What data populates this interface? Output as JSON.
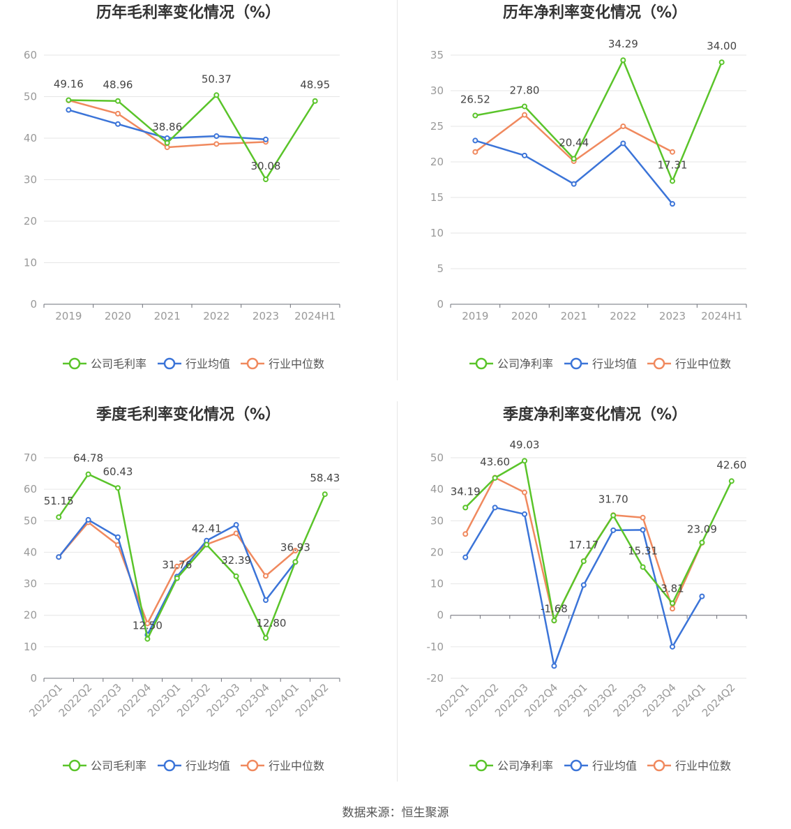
{
  "source": "数据来源：恒生聚源",
  "colors": {
    "company": "#5ac42a",
    "avg": "#3b74d8",
    "median": "#f0895e"
  },
  "chart_data": [
    {
      "type": "line",
      "title": "历年毛利率变化情况（%）",
      "categories": [
        "2019",
        "2020",
        "2021",
        "2022",
        "2023",
        "2024H1"
      ],
      "ylim": [
        0,
        60
      ],
      "yticks": [
        0,
        10,
        20,
        30,
        40,
        50,
        60
      ],
      "rotate_labels": false,
      "series": [
        {
          "name": "公司毛利率",
          "key": "company",
          "values": [
            49.16,
            48.96,
            38.86,
            50.37,
            30.08,
            48.95
          ]
        },
        {
          "name": "行业均值",
          "key": "avg",
          "values": [
            46.8,
            43.4,
            40.0,
            40.5,
            39.7,
            null
          ]
        },
        {
          "name": "行业中位数",
          "key": "median",
          "values": [
            49.1,
            45.9,
            37.8,
            38.6,
            39.1,
            null
          ]
        }
      ],
      "data_labels": [
        "49.16",
        "48.96",
        "38.86",
        "50.37",
        "30.08",
        "48.95"
      ],
      "legend_position": "bottom",
      "grid": true
    },
    {
      "type": "line",
      "title": "历年净利率变化情况（%）",
      "categories": [
        "2019",
        "2020",
        "2021",
        "2022",
        "2023",
        "2024H1"
      ],
      "ylim": [
        0,
        35
      ],
      "yticks": [
        0,
        5,
        10,
        15,
        20,
        25,
        30,
        35
      ],
      "rotate_labels": false,
      "series": [
        {
          "name": "公司净利率",
          "key": "company",
          "values": [
            26.52,
            27.8,
            20.44,
            34.29,
            17.31,
            34.0
          ]
        },
        {
          "name": "行业均值",
          "key": "avg",
          "values": [
            23.0,
            20.9,
            16.9,
            22.6,
            14.1,
            null
          ]
        },
        {
          "name": "行业中位数",
          "key": "median",
          "values": [
            21.4,
            26.6,
            20.1,
            25.0,
            21.4,
            null
          ]
        }
      ],
      "data_labels": [
        "26.52",
        "27.80",
        "20.44",
        "34.29",
        "17.31",
        "34.00"
      ],
      "legend_position": "bottom",
      "grid": true
    },
    {
      "type": "line",
      "title": "季度毛利率变化情况（%）",
      "categories": [
        "2022Q1",
        "2022Q2",
        "2022Q3",
        "2022Q4",
        "2023Q1",
        "2023Q2",
        "2023Q3",
        "2023Q4",
        "2024Q1",
        "2024Q2"
      ],
      "ylim": [
        0,
        70
      ],
      "yticks": [
        0,
        10,
        20,
        30,
        40,
        50,
        60,
        70
      ],
      "rotate_labels": true,
      "series": [
        {
          "name": "公司毛利率",
          "key": "company",
          "values": [
            51.15,
            64.78,
            60.43,
            12.5,
            31.76,
            42.41,
            32.39,
            12.8,
            36.93,
            58.43
          ]
        },
        {
          "name": "行业均值",
          "key": "avg",
          "values": [
            38.5,
            50.3,
            44.8,
            13.8,
            32.3,
            43.7,
            48.7,
            24.8,
            36.9,
            null
          ]
        },
        {
          "name": "行业中位数",
          "key": "median",
          "values": [
            38.5,
            49.5,
            42.3,
            17.4,
            35.5,
            42.5,
            46.0,
            32.5,
            40.5,
            null
          ]
        }
      ],
      "data_labels": [
        "51.15",
        "64.78",
        "60.43",
        "12.50",
        "31.76",
        "42.41",
        "32.39",
        "12.80",
        "36.93",
        "58.43"
      ],
      "legend_position": "bottom",
      "grid": true
    },
    {
      "type": "line",
      "title": "季度净利率变化情况（%）",
      "categories": [
        "2022Q1",
        "2022Q2",
        "2022Q3",
        "2022Q4",
        "2023Q1",
        "2023Q2",
        "2023Q3",
        "2023Q4",
        "2024Q1",
        "2024Q2"
      ],
      "ylim": [
        -20,
        50
      ],
      "yticks": [
        -20,
        -10,
        0,
        10,
        20,
        30,
        40,
        50
      ],
      "rotate_labels": true,
      "series": [
        {
          "name": "公司净利率",
          "key": "company",
          "values": [
            34.19,
            43.6,
            49.03,
            -1.68,
            17.17,
            31.7,
            15.31,
            3.81,
            23.09,
            42.6
          ]
        },
        {
          "name": "行业均值",
          "key": "avg",
          "values": [
            18.4,
            34.2,
            32.1,
            -16.1,
            9.6,
            27.0,
            27.1,
            -10.0,
            6.0,
            null
          ]
        },
        {
          "name": "行业中位数",
          "key": "median",
          "values": [
            25.8,
            43.7,
            39.0,
            -1.7,
            17.2,
            31.8,
            31.0,
            2.1,
            23.0,
            null
          ]
        }
      ],
      "data_labels": [
        "34.19",
        "43.60",
        "49.03",
        "-1.68",
        "17.17",
        "31.70",
        "15.31",
        "3.81",
        "23.09",
        "42.60"
      ],
      "legend_position": "bottom",
      "grid": true
    }
  ]
}
